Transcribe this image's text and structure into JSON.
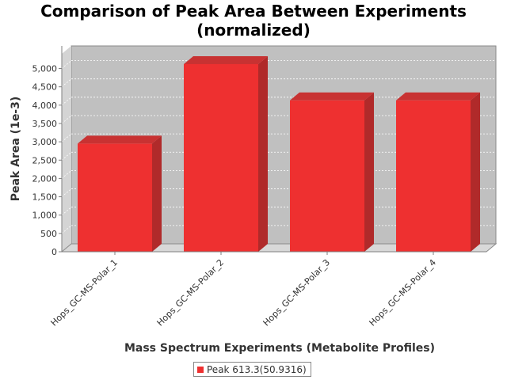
{
  "chart_data": {
    "type": "bar",
    "title_line1": "Comparison of Peak Area Between Experiments",
    "title_line2": "(normalized)",
    "xlabel": "Mass Spectrum Experiments (Metabolite Profiles)",
    "ylabel": "Peak Area (1e-3)",
    "categories": [
      "Hops_GC-MS-Polar_1",
      "Hops_GC-MS-Polar_2",
      "Hops_GC-MS-Polar_3",
      "Hops_GC-MS-Polar_4"
    ],
    "series": [
      {
        "name": "Peak 613.3(50.9316)",
        "values": [
          2950,
          5120,
          4130,
          4130
        ],
        "color": "#ee3030"
      }
    ],
    "ylim": [
      0,
      5400
    ],
    "yticks": [
      0,
      500,
      1000,
      1500,
      2000,
      2500,
      3000,
      3500,
      4000,
      4500,
      5000
    ],
    "ytick_labels": [
      "0",
      "500",
      "1,000",
      "1,500",
      "2,000",
      "2,500",
      "3,000",
      "3,500",
      "4,000",
      "4,500",
      "5,000"
    ],
    "grid": true,
    "legend_position": "bottom-center",
    "colors": {
      "plot_background": "#c0c0c0",
      "bar": "#ee3030",
      "bar_side": "#b02a2a",
      "bar_top": "#c83232"
    }
  }
}
